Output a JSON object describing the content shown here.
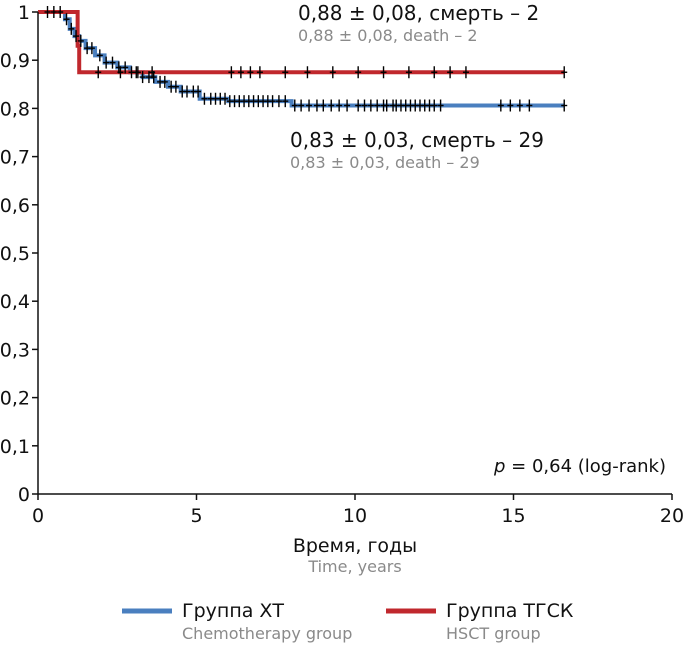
{
  "chart_data": {
    "type": "line",
    "subtype": "kaplan-meier",
    "xlabel": "Время, годы",
    "xlabel_en": "Time, years",
    "xlim": [
      0,
      20
    ],
    "ylim": [
      0,
      1
    ],
    "x_ticks": [
      "0",
      "5",
      "10",
      "15",
      "20"
    ],
    "y_ticks": [
      "0",
      "0,1",
      "0,2",
      "0,3",
      "0,4",
      "0,5",
      "0,6",
      "0,7",
      "0,8",
      "0,9",
      "1"
    ],
    "series": [
      {
        "name": "Группа ХТ",
        "name_en": "Chemotherapy group",
        "color": "#4a7fbf",
        "steps": [
          [
            0,
            1
          ],
          [
            0.85,
            0.985
          ],
          [
            1.0,
            0.965
          ],
          [
            1.15,
            0.95
          ],
          [
            1.3,
            0.94
          ],
          [
            1.5,
            0.925
          ],
          [
            1.8,
            0.91
          ],
          [
            2.1,
            0.895
          ],
          [
            2.5,
            0.885
          ],
          [
            2.9,
            0.875
          ],
          [
            3.3,
            0.865
          ],
          [
            3.7,
            0.855
          ],
          [
            4.1,
            0.845
          ],
          [
            4.5,
            0.835
          ],
          [
            5.1,
            0.82
          ],
          [
            6.0,
            0.815
          ],
          [
            8.0,
            0.806
          ],
          [
            16.6,
            0.806
          ]
        ],
        "censor_x": [
          0.3,
          0.5,
          0.7,
          0.9,
          1.05,
          1.2,
          1.35,
          1.55,
          1.7,
          1.95,
          2.15,
          2.35,
          2.55,
          2.75,
          2.95,
          3.15,
          3.3,
          3.5,
          3.65,
          3.85,
          4.0,
          4.2,
          4.35,
          4.55,
          4.7,
          4.9,
          5.05,
          5.25,
          5.45,
          5.6,
          5.75,
          5.9,
          6.05,
          6.2,
          6.35,
          6.5,
          6.65,
          6.8,
          6.95,
          7.1,
          7.25,
          7.4,
          7.6,
          7.8,
          8.1,
          8.3,
          8.55,
          8.8,
          9.0,
          9.25,
          9.5,
          9.75,
          10.1,
          10.3,
          10.5,
          10.7,
          10.9,
          11.0,
          11.2,
          11.3,
          11.45,
          11.6,
          11.75,
          11.9,
          12.05,
          12.2,
          12.35,
          12.5,
          12.7,
          14.6,
          14.9,
          15.2,
          15.5,
          16.6
        ],
        "annotation": "0,83 ± 0,03, смерть – 29",
        "annotation_en": "0,83 ± 0,03, death – 29"
      },
      {
        "name": "Группа ТГСК",
        "name_en": "HSCT group",
        "color": "#c0282d",
        "steps": [
          [
            0,
            1
          ],
          [
            1.25,
            0.93
          ],
          [
            1.3,
            0.875
          ],
          [
            16.6,
            0.875
          ]
        ],
        "censor_x": [
          1.9,
          2.6,
          3.1,
          3.6,
          6.1,
          6.4,
          6.7,
          7.0,
          7.8,
          8.5,
          9.3,
          10.1,
          10.9,
          11.7,
          12.5,
          13.0,
          13.5,
          16.6
        ],
        "annotation": "0,88 ± 0,08, смерть – 2",
        "annotation_en": "0,88 ± 0,08, death – 2"
      }
    ],
    "p_value_prefix": "p",
    "p_value_text": " = 0,64 (log-rank)"
  }
}
